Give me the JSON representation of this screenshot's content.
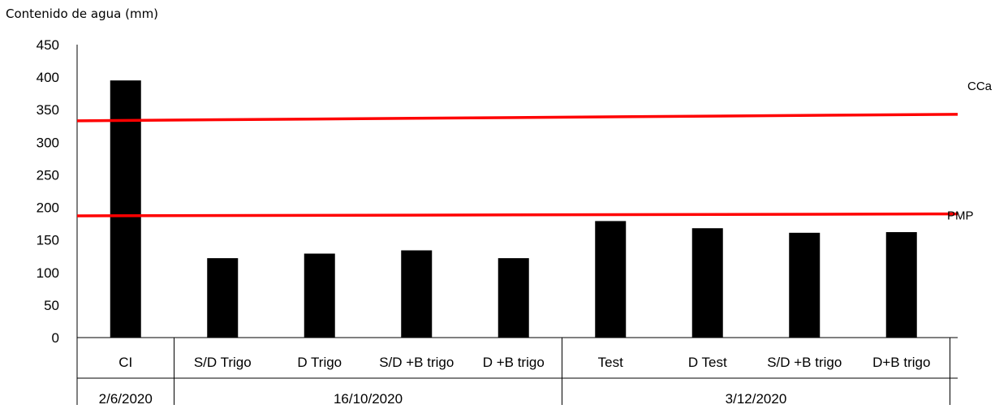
{
  "chart_data": {
    "type": "bar",
    "ylabel": "Contenido de agua (mm)",
    "ylim": [
      0,
      450
    ],
    "yticks": [
      0,
      50,
      100,
      150,
      200,
      250,
      300,
      350,
      400,
      450
    ],
    "grid": false,
    "bar_color": "#000000",
    "categories": [
      "CI",
      "S/D Trigo",
      "D Trigo",
      "S/D +B trigo",
      "D +B trigo",
      "Test",
      "D Test",
      "S/D +B trigo",
      "D+B trigo"
    ],
    "values": [
      395,
      122,
      129,
      134,
      122,
      179,
      168,
      161,
      162
    ],
    "groups": [
      {
        "label": "2/6/2020",
        "span": [
          0,
          0
        ]
      },
      {
        "label": "16/10/2020",
        "span": [
          1,
          4
        ]
      },
      {
        "label": "3/12/2020",
        "span": [
          5,
          8
        ]
      }
    ],
    "reference_lines": [
      {
        "label": "CCa",
        "y_start": 333,
        "y_end": 343,
        "color": "#ff0000"
      },
      {
        "label": "PMP",
        "y_start": 187,
        "y_end": 190,
        "color": "#ff0000"
      }
    ]
  }
}
